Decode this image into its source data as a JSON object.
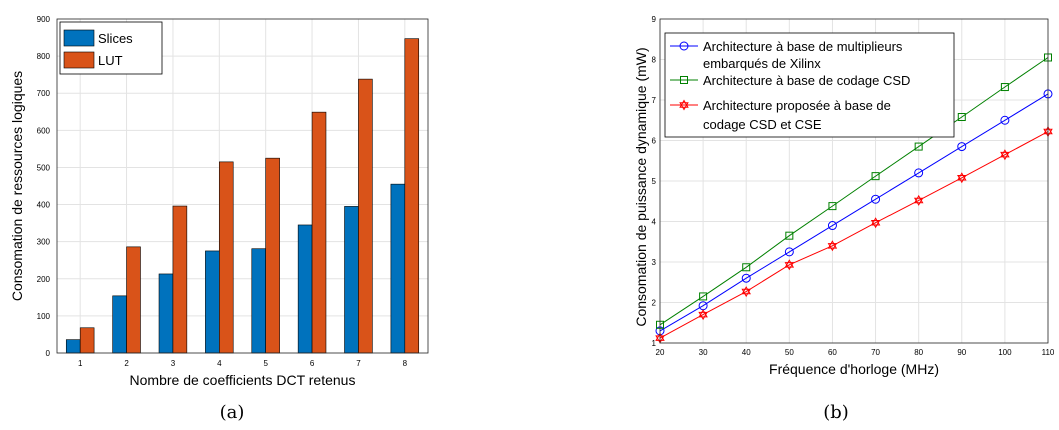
{
  "captions": [
    "(a)",
    "(b)"
  ],
  "chart_data": [
    {
      "type": "bar",
      "categories": [
        "1",
        "2",
        "3",
        "4",
        "5",
        "6",
        "7",
        "8"
      ],
      "series": [
        {
          "name": "Slices",
          "color": "#0072BD",
          "values": [
            36,
            154,
            213,
            275,
            281,
            345,
            395,
            455
          ]
        },
        {
          "name": "LUT",
          "color": "#D95319",
          "values": [
            68,
            286,
            396,
            515,
            525,
            649,
            738,
            847
          ]
        }
      ],
      "xlabel": "Nombre de coefficients DCT retenus",
      "ylabel": "Consomation de ressources logiques",
      "ylim": [
        0,
        900
      ],
      "yticks": [
        0,
        100,
        200,
        300,
        400,
        500,
        600,
        700,
        800,
        900
      ],
      "grid": true,
      "legend_position": "top-left"
    },
    {
      "type": "line",
      "x": [
        20,
        30,
        40,
        50,
        60,
        70,
        80,
        90,
        100,
        110
      ],
      "series": [
        {
          "name": "Architecture à base de multiplieurs embarqués de Xilinx",
          "legend_lines": [
            "Architecture à base de multiplieurs",
            "embarqués de Xilinx"
          ],
          "color": "#0000FF",
          "marker": "circle",
          "values": [
            1.3,
            1.92,
            2.6,
            3.25,
            3.9,
            4.55,
            5.2,
            5.85,
            6.5,
            7.15
          ]
        },
        {
          "name": "Architecture à base de codage CSD",
          "legend_lines": [
            "Architecture à base de codage CSD"
          ],
          "color": "#008000",
          "marker": "square",
          "values": [
            1.45,
            2.15,
            2.87,
            3.65,
            4.38,
            5.12,
            5.85,
            6.58,
            7.32,
            8.05
          ]
        },
        {
          "name": "Architecture proposée à base de codage CSD et CSE",
          "legend_lines": [
            "Architecture proposée à base de",
            "codage CSD et CSE"
          ],
          "color": "#FF0000",
          "marker": "hexagram",
          "values": [
            1.12,
            1.7,
            2.27,
            2.93,
            3.4,
            3.97,
            4.52,
            5.08,
            5.65,
            6.22
          ]
        }
      ],
      "xlabel": "Fréquence d'horloge (MHz)",
      "ylabel": "Consomation de puissance dynamique (mW)",
      "xlim": [
        20,
        110
      ],
      "ylim": [
        1,
        9
      ],
      "xticks": [
        20,
        30,
        40,
        50,
        60,
        70,
        80,
        90,
        100,
        110
      ],
      "yticks": [
        1,
        2,
        3,
        4,
        5,
        6,
        7,
        8,
        9
      ],
      "grid": true,
      "legend_position": "top-left"
    }
  ]
}
